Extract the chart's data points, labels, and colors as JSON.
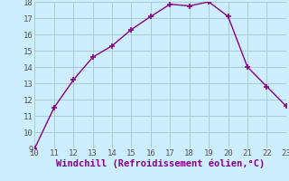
{
  "x": [
    10,
    11,
    12,
    13,
    14,
    15,
    16,
    17,
    18,
    19,
    20,
    21,
    22,
    23
  ],
  "y": [
    9.0,
    11.5,
    13.2,
    14.6,
    15.3,
    16.3,
    17.1,
    17.85,
    17.75,
    18.0,
    17.1,
    14.0,
    12.8,
    11.6
  ],
  "xlim": [
    10,
    23
  ],
  "ylim": [
    9,
    18
  ],
  "xticks": [
    10,
    11,
    12,
    13,
    14,
    15,
    16,
    17,
    18,
    19,
    20,
    21,
    22,
    23
  ],
  "yticks": [
    9,
    10,
    11,
    12,
    13,
    14,
    15,
    16,
    17,
    18
  ],
  "xlabel": "Windchill (Refroidissement éolien,°C)",
  "line_color": "#880088",
  "marker_color": "#880088",
  "bg_color": "#cceeff",
  "grid_color": "#aacccc",
  "tick_label_fontsize": 6.5,
  "xlabel_fontsize": 7.5
}
